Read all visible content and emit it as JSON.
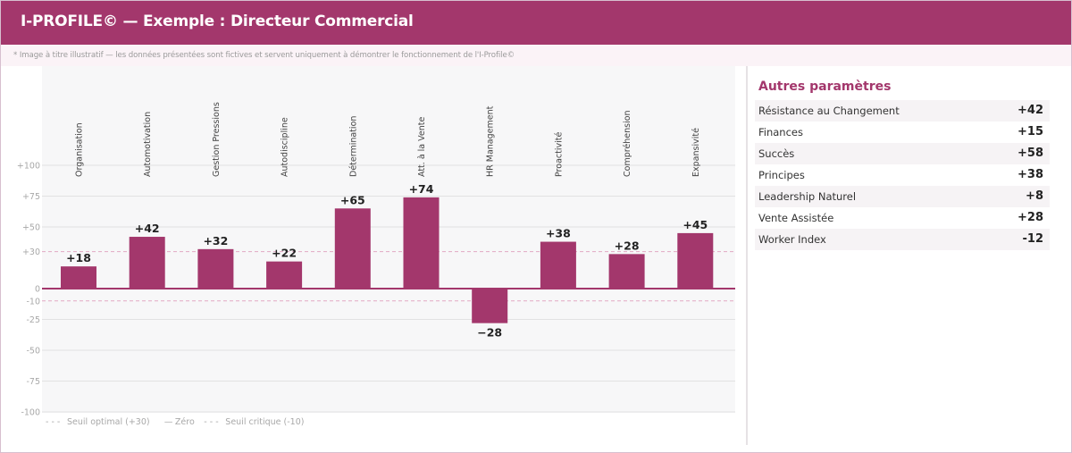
{
  "header": {
    "title": "I-PROFILE© — Exemple : Directeur Commercial"
  },
  "disclaimer": "* Image à titre illustratif — les données présentées sont fictives et servent uniquement à démontrer le fonctionnement de l'I-Profile©",
  "colors": {
    "brand": "#a3376c",
    "bar": "#a3376c",
    "threshold_line": "#e2a9c4",
    "grid": "#e2e2e2",
    "plot_bg": "#f7f7f8",
    "header_bg": "#a3376c"
  },
  "chart_data": {
    "type": "bar",
    "title": "",
    "xlabel": "",
    "ylabel": "",
    "categories": [
      "Organisation",
      "Automotivation",
      "Gestion Pressions",
      "Autodiscipline",
      "Détermination",
      "Att. à la Vente",
      "HR Management",
      "Proactivité",
      "Compréhension",
      "Expansivité"
    ],
    "values": [
      18,
      42,
      32,
      22,
      65,
      74,
      -28,
      38,
      28,
      45
    ],
    "value_labels": [
      "+18",
      "+42",
      "+32",
      "+22",
      "+65",
      "+74",
      "−28",
      "+38",
      "+28",
      "+45"
    ],
    "ylim": [
      -100,
      100
    ],
    "yticks": [
      100,
      75,
      50,
      30,
      0,
      -10,
      -25,
      -50,
      -75,
      -100
    ],
    "ytick_labels": [
      "+100",
      "+75",
      "+50",
      "+30",
      "0",
      "-10",
      "-25",
      "-50",
      "-75",
      "-100"
    ],
    "grid": true,
    "reference_lines": [
      {
        "name": "Seuil optimal (+30)",
        "value": 30,
        "style": "dashed"
      },
      {
        "name": "Zéro",
        "value": 0,
        "style": "solid"
      },
      {
        "name": "Seuil critique (-10)",
        "value": -10,
        "style": "dashed"
      }
    ],
    "legend": {
      "position": "bottom-left",
      "entries": [
        {
          "symbol": "- - -",
          "label": "Seuil optimal (+30)"
        },
        {
          "symbol": "—",
          "label": "Zéro"
        },
        {
          "symbol": "- - -",
          "label": "Seuil critique (-10)"
        }
      ]
    }
  },
  "sidebar": {
    "title": "Autres paramètres",
    "items": [
      {
        "label": "Résistance au Changement",
        "value": "+42"
      },
      {
        "label": "Finances",
        "value": "+15"
      },
      {
        "label": "Succès",
        "value": "+58"
      },
      {
        "label": "Principes",
        "value": "+38"
      },
      {
        "label": "Leadership Naturel",
        "value": "+8"
      },
      {
        "label": "Vente Assistée",
        "value": "+28"
      },
      {
        "label": "Worker Index",
        "value": "-12"
      }
    ]
  }
}
